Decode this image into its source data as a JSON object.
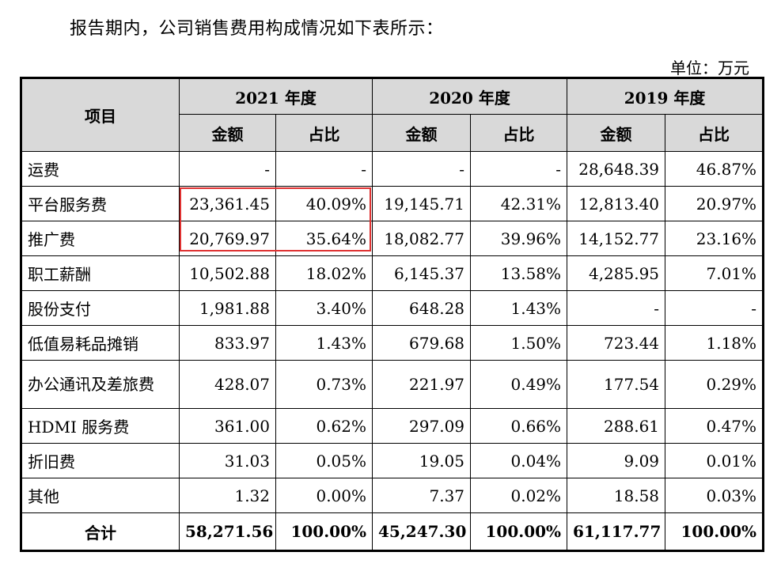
{
  "intro_text": "报告期内，公司销售费用构成情况如下表所示：",
  "unit_text": "单位：万元",
  "table": {
    "item_header": "项目",
    "years": [
      "2021 年度",
      "2020 年度",
      "2019 年度"
    ],
    "sub_headers": [
      "金额",
      "占比",
      "金额",
      "占比",
      "金额",
      "占比"
    ],
    "rows": [
      {
        "label": "运费",
        "values": [
          "-",
          "-",
          "-",
          "-",
          "28,648.39",
          "46.87%"
        ]
      },
      {
        "label": "平台服务费",
        "values": [
          "23,361.45",
          "40.09%",
          "19,145.71",
          "42.31%",
          "12,813.40",
          "20.97%"
        ]
      },
      {
        "label": "推广费",
        "values": [
          "20,769.97",
          "35.64%",
          "18,082.77",
          "39.96%",
          "14,152.77",
          "23.16%"
        ]
      },
      {
        "label": "职工薪酬",
        "values": [
          "10,502.88",
          "18.02%",
          "6,145.37",
          "13.58%",
          "4,285.95",
          "7.01%"
        ]
      },
      {
        "label": "股份支付",
        "values": [
          "1,981.88",
          "3.40%",
          "648.28",
          "1.43%",
          "-",
          "-"
        ]
      },
      {
        "label": "低值易耗品摊销",
        "values": [
          "833.97",
          "1.43%",
          "679.68",
          "1.50%",
          "723.44",
          "1.18%"
        ]
      },
      {
        "label": "办公通讯及差旅费",
        "values": [
          "428.07",
          "0.73%",
          "221.97",
          "0.49%",
          "177.54",
          "0.29%"
        ]
      },
      {
        "label": "HDMI 服务费",
        "values": [
          "361.00",
          "0.62%",
          "297.09",
          "0.66%",
          "288.61",
          "0.47%"
        ]
      },
      {
        "label": "折旧费",
        "values": [
          "31.03",
          "0.05%",
          "19.05",
          "0.04%",
          "9.09",
          "0.01%"
        ]
      },
      {
        "label": "其他",
        "values": [
          "1.32",
          "0.00%",
          "7.37",
          "0.02%",
          "18.58",
          "0.03%"
        ]
      }
    ],
    "total": {
      "label": "合计",
      "values": [
        "58,271.56",
        "100.00%",
        "45,247.30",
        "100.00%",
        "61,117.77",
        "100.00%"
      ]
    }
  },
  "highlight_color": "#e03131"
}
